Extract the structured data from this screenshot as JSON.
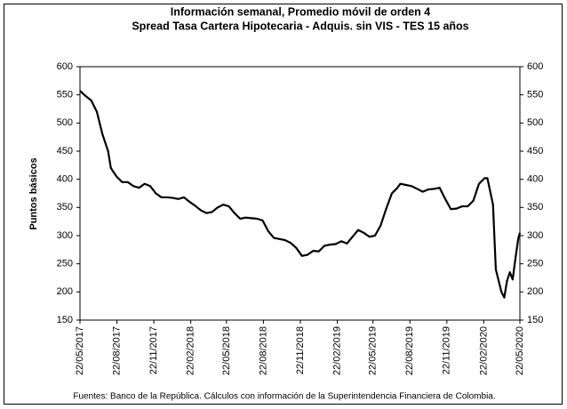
{
  "chart_data": {
    "type": "line",
    "title": "Información semanal, Promedio móvil de orden 4",
    "subtitle": "Spread Tasa Cartera Hipotecaria - Adquis. sin VIS -  TES 15 años",
    "y_label": "Puntos básicos",
    "footnote": "Fuentes: Banco de la República. Cálculos con información de la Superintendencia Financiera de Colombia.",
    "x": [
      "22/05/2017",
      "05/06/2017",
      "19/06/2017",
      "03/07/2017",
      "17/07/2017",
      "31/07/2017",
      "07/08/2017",
      "21/08/2017",
      "04/09/2017",
      "18/09/2017",
      "02/10/2017",
      "16/10/2017",
      "30/10/2017",
      "13/11/2017",
      "27/11/2017",
      "11/12/2017",
      "25/12/2017",
      "08/01/2018",
      "22/01/2018",
      "05/02/2018",
      "19/02/2018",
      "05/03/2018",
      "19/03/2018",
      "02/04/2018",
      "16/04/2018",
      "30/04/2018",
      "14/05/2018",
      "28/05/2018",
      "11/06/2018",
      "25/06/2018",
      "09/07/2018",
      "23/07/2018",
      "06/08/2018",
      "20/08/2018",
      "03/09/2018",
      "17/09/2018",
      "01/10/2018",
      "15/10/2018",
      "29/10/2018",
      "12/11/2018",
      "26/11/2018",
      "10/12/2018",
      "24/12/2018",
      "07/01/2019",
      "21/01/2019",
      "04/02/2019",
      "18/02/2019",
      "04/03/2019",
      "18/03/2019",
      "01/04/2019",
      "15/04/2019",
      "29/04/2019",
      "13/05/2019",
      "27/05/2019",
      "10/06/2019",
      "24/06/2019",
      "08/07/2019",
      "22/07/2019",
      "29/07/2019",
      "12/08/2019",
      "26/08/2019",
      "09/09/2019",
      "23/09/2019",
      "07/10/2019",
      "21/10/2019",
      "04/11/2019",
      "18/11/2019",
      "02/12/2019",
      "16/12/2019",
      "30/12/2019",
      "13/01/2020",
      "27/01/2020",
      "10/02/2020",
      "24/02/2020",
      "02/03/2020",
      "16/03/2020",
      "23/03/2020",
      "06/04/2020",
      "13/04/2020",
      "20/04/2020",
      "27/04/2020",
      "04/05/2020",
      "11/05/2020",
      "18/05/2020",
      "22/05/2020"
    ],
    "series": [
      {
        "name": "Spread",
        "color": "#000000",
        "values": [
          557,
          548,
          540,
          520,
          480,
          450,
          420,
          405,
          395,
          395,
          388,
          385,
          392,
          388,
          375,
          368,
          368,
          367,
          365,
          368,
          360,
          353,
          345,
          340,
          342,
          350,
          355,
          352,
          340,
          330,
          332,
          331,
          330,
          327,
          308,
          296,
          294,
          292,
          287,
          278,
          264,
          266,
          273,
          272,
          282,
          284,
          285,
          290,
          286,
          298,
          310,
          305,
          298,
          300,
          318,
          348,
          375,
          385,
          392,
          390,
          388,
          383,
          378,
          382,
          383,
          385,
          365,
          347,
          348,
          352,
          352,
          362,
          392,
          402,
          402,
          355,
          240,
          200,
          190,
          220,
          235,
          222,
          260,
          295,
          305
        ]
      }
    ],
    "xlim": [
      "22/05/2017",
      "22/05/2020"
    ],
    "xticks": [
      "22/05/2017",
      "22/08/2017",
      "22/11/2017",
      "22/02/2018",
      "22/05/2018",
      "22/08/2018",
      "22/11/2018",
      "22/02/2019",
      "22/05/2019",
      "22/08/2019",
      "22/11/2019",
      "22/02/2020",
      "22/05/2020"
    ],
    "ylim": [
      150,
      600
    ],
    "yticks": [
      150,
      200,
      250,
      300,
      350,
      400,
      450,
      500,
      550,
      600
    ],
    "y2lim": [
      150,
      600
    ],
    "y2ticks": [
      150,
      200,
      250,
      300,
      350,
      400,
      450,
      500,
      550,
      600
    ]
  }
}
